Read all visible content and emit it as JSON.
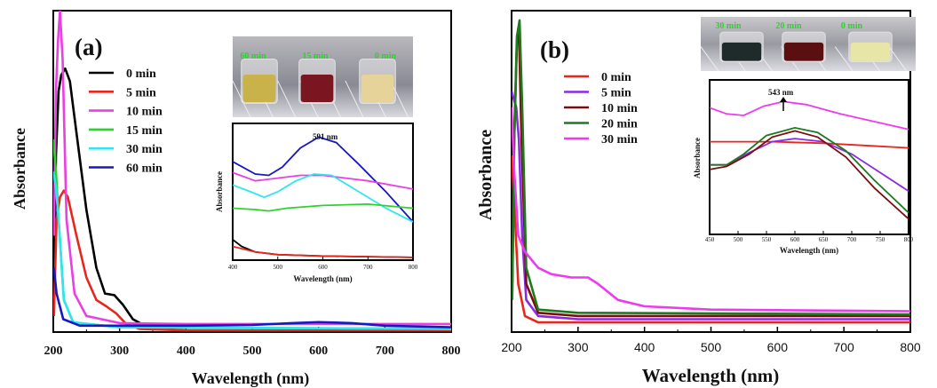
{
  "colors": {
    "black": "#000000",
    "red": "#e8261c",
    "magenta": "#e93fe3",
    "green": "#2fd12f",
    "cyan": "#2fe5f0",
    "blue": "#1818c0",
    "purple": "#8a2be2",
    "darkred": "#7a0e0e",
    "darkgreen": "#1d7a1d",
    "pink": "#ee3aee",
    "photo_label": "#2fd12f"
  },
  "chart_data": [
    {
      "id": "a",
      "type": "line",
      "panel_label": "(a)",
      "xlabel": "Wavelength (nm)",
      "ylabel": "Absorbance",
      "xlim": [
        200,
        800
      ],
      "ylim": [
        0,
        1
      ],
      "xticks": [
        "200",
        "300",
        "400",
        "500",
        "600",
        "700",
        "800"
      ],
      "legend_position": "top-left",
      "series": [
        {
          "name": "0 min",
          "color": "black",
          "points": [
            [
              201,
              0.05
            ],
            [
              204,
              0.55
            ],
            [
              208,
              0.75
            ],
            [
              212,
              0.8
            ],
            [
              218,
              0.82
            ],
            [
              225,
              0.78
            ],
            [
              235,
              0.62
            ],
            [
              250,
              0.38
            ],
            [
              265,
              0.2
            ],
            [
              278,
              0.12
            ],
            [
              292,
              0.115
            ],
            [
              305,
              0.085
            ],
            [
              320,
              0.04
            ],
            [
              345,
              0.012
            ],
            [
              400,
              0.005
            ],
            [
              800,
              0.005
            ]
          ]
        },
        {
          "name": "5 min",
          "color": "red",
          "points": [
            [
              201,
              0.05
            ],
            [
              205,
              0.35
            ],
            [
              210,
              0.42
            ],
            [
              216,
              0.44
            ],
            [
              222,
              0.42
            ],
            [
              235,
              0.3
            ],
            [
              250,
              0.17
            ],
            [
              265,
              0.1
            ],
            [
              280,
              0.08
            ],
            [
              295,
              0.058
            ],
            [
              310,
              0.025
            ],
            [
              330,
              0.01
            ],
            [
              400,
              0.005
            ],
            [
              800,
              0.005
            ]
          ]
        },
        {
          "name": "10 min",
          "color": "magenta",
          "points": [
            [
              201,
              0.3
            ],
            [
              204,
              0.75
            ],
            [
              207,
              0.9
            ],
            [
              210,
              1.0
            ],
            [
              214,
              0.85
            ],
            [
              220,
              0.35
            ],
            [
              232,
              0.12
            ],
            [
              250,
              0.05
            ],
            [
              300,
              0.028
            ],
            [
              400,
              0.025
            ],
            [
              800,
              0.025
            ]
          ]
        },
        {
          "name": "15 min",
          "color": "green",
          "points": [
            [
              200,
              0.6
            ],
            [
              204,
              0.5
            ],
            [
              208,
              0.35
            ],
            [
              216,
              0.1
            ],
            [
              230,
              0.03
            ],
            [
              300,
              0.015
            ],
            [
              800,
              0.01
            ]
          ]
        },
        {
          "name": "30 min",
          "color": "cyan",
          "points": [
            [
              200,
              0.5
            ],
            [
              204,
              0.45
            ],
            [
              208,
              0.35
            ],
            [
              216,
              0.1
            ],
            [
              230,
              0.03
            ],
            [
              300,
              0.015
            ],
            [
              800,
              0.01
            ]
          ]
        },
        {
          "name": "60 min",
          "color": "blue",
          "points": [
            [
              201,
              0.2
            ],
            [
              205,
              0.12
            ],
            [
              215,
              0.04
            ],
            [
              240,
              0.02
            ],
            [
              400,
              0.02
            ],
            [
              500,
              0.022
            ],
            [
              560,
              0.028
            ],
            [
              600,
              0.031
            ],
            [
              650,
              0.028
            ],
            [
              700,
              0.02
            ],
            [
              800,
              0.015
            ]
          ]
        }
      ],
      "inset": {
        "annotation": "591 nm",
        "xlabel": "Wavelength (nm)",
        "ylabel": "Absorbance",
        "xlim": [
          400,
          800
        ],
        "ylim": [
          0,
          1
        ],
        "xticks": [
          "400",
          "500",
          "600",
          "700",
          "800"
        ],
        "photo_labels": [
          "60 min",
          "15 min",
          "0 min"
        ],
        "series": [
          {
            "color": "blue",
            "points": [
              [
                400,
                0.72
              ],
              [
                450,
                0.63
              ],
              [
                480,
                0.62
              ],
              [
                510,
                0.68
              ],
              [
                550,
                0.82
              ],
              [
                591,
                0.9
              ],
              [
                630,
                0.86
              ],
              [
                680,
                0.7
              ],
              [
                740,
                0.5
              ],
              [
                800,
                0.28
              ]
            ]
          },
          {
            "color": "magenta",
            "points": [
              [
                400,
                0.64
              ],
              [
                450,
                0.58
              ],
              [
                500,
                0.6
              ],
              [
                550,
                0.62
              ],
              [
                600,
                0.62
              ],
              [
                700,
                0.58
              ],
              [
                800,
                0.52
              ]
            ]
          },
          {
            "color": "cyan",
            "points": [
              [
                400,
                0.55
              ],
              [
                440,
                0.5
              ],
              [
                470,
                0.46
              ],
              [
                500,
                0.5
              ],
              [
                540,
                0.58
              ],
              [
                580,
                0.63
              ],
              [
                620,
                0.62
              ],
              [
                680,
                0.5
              ],
              [
                740,
                0.38
              ],
              [
                800,
                0.28
              ]
            ]
          },
          {
            "color": "green",
            "points": [
              [
                400,
                0.38
              ],
              [
                450,
                0.37
              ],
              [
                480,
                0.36
              ],
              [
                520,
                0.38
              ],
              [
                600,
                0.4
              ],
              [
                700,
                0.41
              ],
              [
                800,
                0.38
              ]
            ]
          },
          {
            "color": "black",
            "points": [
              [
                400,
                0.15
              ],
              [
                420,
                0.1
              ],
              [
                450,
                0.06
              ],
              [
                500,
                0.04
              ],
              [
                600,
                0.03
              ],
              [
                800,
                0.02
              ]
            ]
          },
          {
            "color": "red",
            "points": [
              [
                400,
                0.1
              ],
              [
                450,
                0.06
              ],
              [
                500,
                0.04
              ],
              [
                600,
                0.03
              ],
              [
                800,
                0.02
              ]
            ]
          }
        ]
      }
    },
    {
      "id": "b",
      "type": "line",
      "panel_label": "(b)",
      "xlabel": "Wavelength (nm)",
      "ylabel": "Absorbance",
      "xlim": [
        200,
        800
      ],
      "ylim": [
        0,
        1
      ],
      "xticks": [
        "200",
        "300",
        "400",
        "500",
        "600",
        "700",
        "800"
      ],
      "legend_position": "top-left",
      "series": [
        {
          "name": "0 min",
          "color": "red",
          "points": [
            [
              200,
              0.55
            ],
            [
              204,
              0.4
            ],
            [
              210,
              0.15
            ],
            [
              220,
              0.05
            ],
            [
              240,
              0.03
            ],
            [
              300,
              0.03
            ],
            [
              800,
              0.03
            ]
          ]
        },
        {
          "name": "5 min",
          "color": "purple",
          "points": [
            [
              200,
              0.75
            ],
            [
              204,
              0.72
            ],
            [
              207,
              0.7
            ],
            [
              211,
              0.6
            ],
            [
              216,
              0.3
            ],
            [
              222,
              0.1
            ],
            [
              240,
              0.05
            ],
            [
              300,
              0.04
            ],
            [
              800,
              0.04
            ]
          ]
        },
        {
          "name": "10 min",
          "color": "darkred",
          "points": [
            [
              201,
              0.12
            ],
            [
              204,
              0.6
            ],
            [
              208,
              0.9
            ],
            [
              211,
              0.95
            ],
            [
              215,
              0.6
            ],
            [
              222,
              0.15
            ],
            [
              240,
              0.06
            ],
            [
              300,
              0.05
            ],
            [
              800,
              0.05
            ]
          ]
        },
        {
          "name": "20 min",
          "color": "darkgreen",
          "points": [
            [
              201,
              0.1
            ],
            [
              204,
              0.6
            ],
            [
              208,
              0.92
            ],
            [
              212,
              0.97
            ],
            [
              216,
              0.7
            ],
            [
              222,
              0.2
            ],
            [
              240,
              0.07
            ],
            [
              300,
              0.06
            ],
            [
              800,
              0.055
            ]
          ]
        },
        {
          "name": "30 min",
          "color": "pink",
          "points": [
            [
              200,
              0.7
            ],
            [
              204,
              0.5
            ],
            [
              210,
              0.3
            ],
            [
              220,
              0.25
            ],
            [
              240,
              0.2
            ],
            [
              260,
              0.18
            ],
            [
              290,
              0.17
            ],
            [
              315,
              0.17
            ],
            [
              330,
              0.15
            ],
            [
              360,
              0.1
            ],
            [
              400,
              0.08
            ],
            [
              500,
              0.07
            ],
            [
              800,
              0.065
            ]
          ]
        }
      ],
      "inset": {
        "annotation": "543 nm",
        "xlabel": "Wavelength (nm)",
        "ylabel": "Absorbance",
        "xlim": [
          450,
          800
        ],
        "ylim": [
          0,
          1
        ],
        "xticks": [
          "450",
          "500",
          "550",
          "600",
          "650",
          "700",
          "750",
          "800"
        ],
        "photo_labels": [
          "30 min",
          "20 min",
          "0 min"
        ],
        "series": [
          {
            "color": "pink",
            "points": [
              [
                450,
                0.82
              ],
              [
                480,
                0.78
              ],
              [
                510,
                0.77
              ],
              [
                545,
                0.83
              ],
              [
                580,
                0.86
              ],
              [
                620,
                0.84
              ],
              [
                680,
                0.78
              ],
              [
                740,
                0.73
              ],
              [
                800,
                0.68
              ]
            ]
          },
          {
            "color": "red",
            "points": [
              [
                450,
                0.6
              ],
              [
                500,
                0.6
              ],
              [
                560,
                0.6
              ],
              [
                650,
                0.59
              ],
              [
                750,
                0.57
              ],
              [
                800,
                0.56
              ]
            ]
          },
          {
            "color": "purple",
            "points": [
              [
                450,
                0.45
              ],
              [
                480,
                0.45
              ],
              [
                520,
                0.53
              ],
              [
                560,
                0.6
              ],
              [
                600,
                0.62
              ],
              [
                650,
                0.6
              ],
              [
                700,
                0.52
              ],
              [
                750,
                0.4
              ],
              [
                800,
                0.28
              ]
            ]
          },
          {
            "color": "darkgreen",
            "points": [
              [
                450,
                0.45
              ],
              [
                480,
                0.45
              ],
              [
                510,
                0.52
              ],
              [
                550,
                0.64
              ],
              [
                600,
                0.69
              ],
              [
                640,
                0.66
              ],
              [
                690,
                0.54
              ],
              [
                740,
                0.35
              ],
              [
                800,
                0.14
              ]
            ]
          },
          {
            "color": "darkred",
            "points": [
              [
                450,
                0.42
              ],
              [
                480,
                0.44
              ],
              [
                520,
                0.52
              ],
              [
                560,
                0.63
              ],
              [
                600,
                0.67
              ],
              [
                640,
                0.63
              ],
              [
                690,
                0.5
              ],
              [
                740,
                0.3
              ],
              [
                800,
                0.1
              ]
            ]
          }
        ]
      }
    }
  ]
}
